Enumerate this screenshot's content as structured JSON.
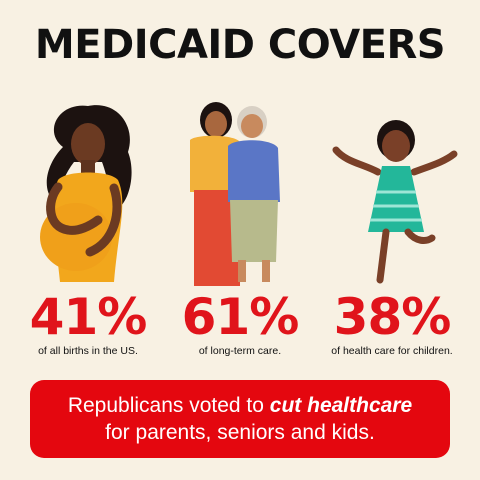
{
  "title": "MEDICAID COVERS",
  "stats": [
    {
      "percent": "41%",
      "caption": "of all births in the US."
    },
    {
      "percent": "61%",
      "caption": "of long-term care."
    },
    {
      "percent": "38%",
      "caption": "of health care for children."
    }
  ],
  "banner": {
    "line1_prefix": "Republicans voted to ",
    "line1_emphasis": "cut healthcare",
    "line2": "for parents, seniors and kids."
  },
  "colors": {
    "background": "#f8f1e3",
    "accent_red": "#e0141b",
    "banner_red": "#e4070f"
  }
}
